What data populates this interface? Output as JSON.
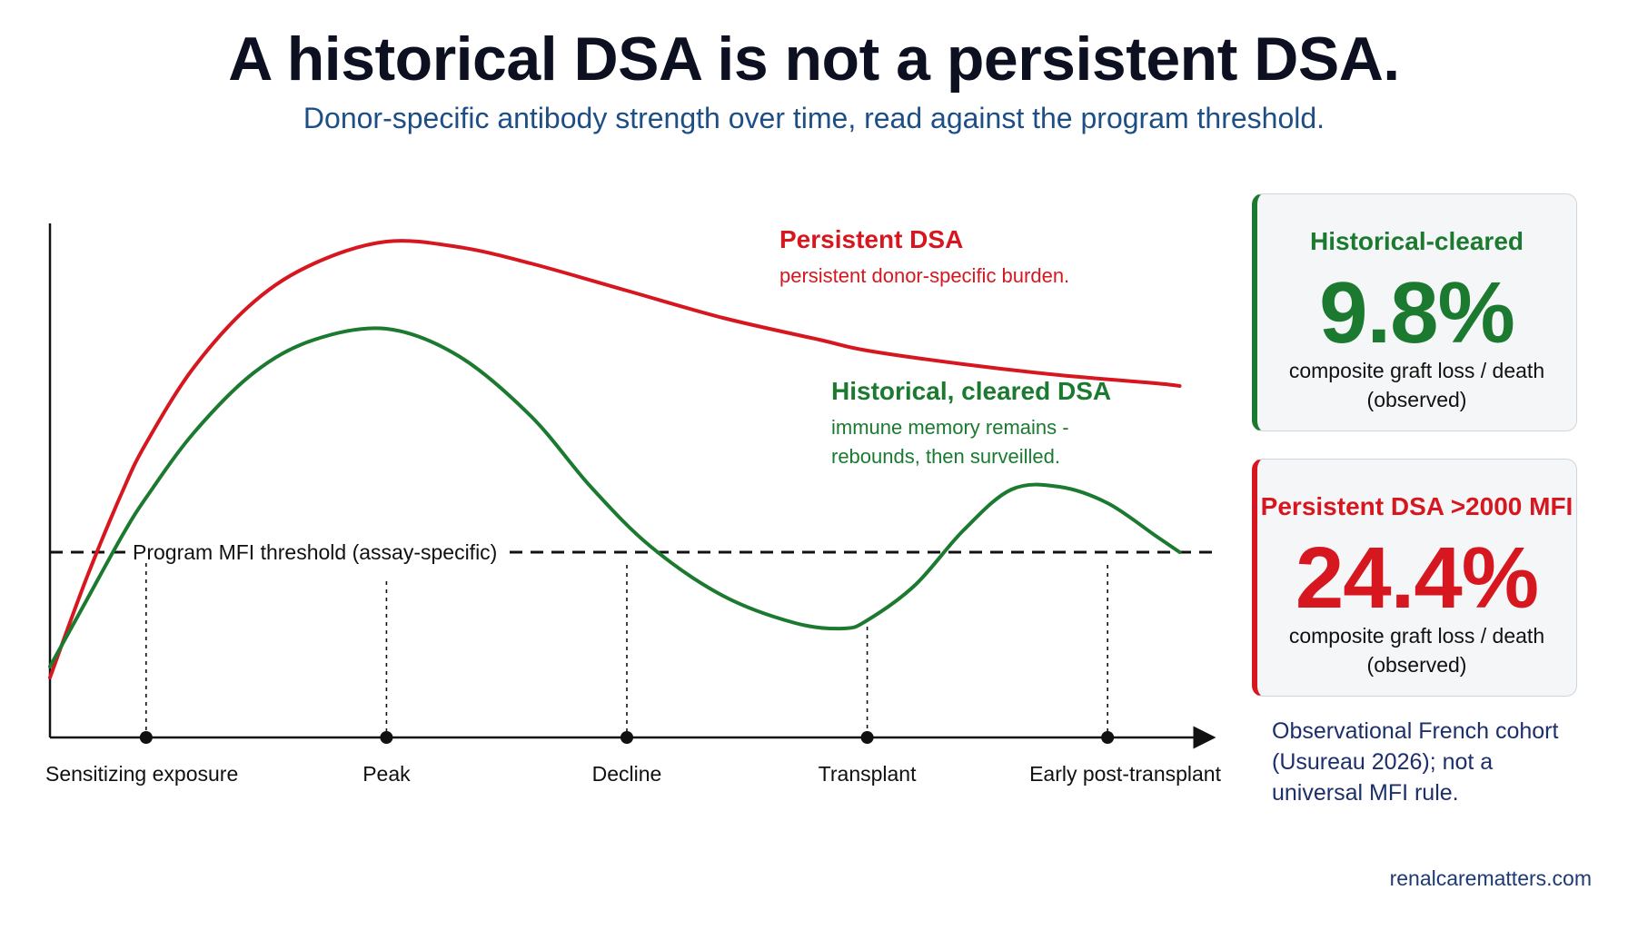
{
  "title": "A historical DSA is not a persistent DSA.",
  "subtitle": "Donor-specific antibody strength over time, read against the program threshold.",
  "colors": {
    "persistent": "#d7171f",
    "historical": "#1b7a2f",
    "threshold": "#111111"
  },
  "chart_data": {
    "type": "line",
    "x_categories": [
      "Sensitizing exposure",
      "Peak",
      "Decline",
      "Transplant",
      "Early post-transplant"
    ],
    "x_positions": [
      0,
      1,
      2,
      3,
      4
    ],
    "xlim": [
      -0.4,
      4.4
    ],
    "ylim": [
      0,
      10
    ],
    "y_units": "relative DSA strength (MFI)",
    "threshold": {
      "value": 3.4,
      "label": "Program MFI threshold (assay-specific)"
    },
    "series": [
      {
        "name": "Persistent DSA",
        "note": "persistent donor-specific burden.",
        "x": [
          -0.4,
          -0.25,
          -0.1,
          0.0,
          0.2,
          0.45,
          0.7,
          1.0,
          1.3,
          1.6,
          2.0,
          2.4,
          2.8,
          3.0,
          3.4,
          3.8,
          4.2,
          4.3
        ],
        "y": [
          1.1,
          2.9,
          4.5,
          5.4,
          6.8,
          8.0,
          8.7,
          9.1,
          9.0,
          8.7,
          8.2,
          7.7,
          7.3,
          7.1,
          6.85,
          6.65,
          6.5,
          6.45
        ]
      },
      {
        "name": "Historical, cleared DSA",
        "note": "immune memory remains - rebounds, then surveilled.",
        "x": [
          -0.4,
          -0.25,
          -0.1,
          0.0,
          0.2,
          0.45,
          0.7,
          1.0,
          1.3,
          1.6,
          1.85,
          2.1,
          2.4,
          2.7,
          2.9,
          3.0,
          3.2,
          3.4,
          3.6,
          3.8,
          4.0,
          4.2,
          4.3
        ],
        "y": [
          1.3,
          2.5,
          3.7,
          4.4,
          5.6,
          6.7,
          7.3,
          7.5,
          7.0,
          5.9,
          4.6,
          3.5,
          2.6,
          2.1,
          2.0,
          2.15,
          2.8,
          3.8,
          4.55,
          4.6,
          4.3,
          3.7,
          3.4
        ]
      }
    ],
    "xlabel": "",
    "ylabel": ""
  },
  "cards": [
    {
      "label": "Historical-cleared",
      "value": "9.8%",
      "desc_line1": "composite graft loss / death",
      "desc_line2": "(observed)"
    },
    {
      "label": "Persistent DSA >2000 MFI",
      "value": "24.4%",
      "desc_line1": "composite graft loss / death",
      "desc_line2": "(observed)"
    }
  ],
  "note_lines": [
    "Observational French cohort",
    "(Usureau 2026); not a",
    "universal MFI rule."
  ],
  "footer": "renalcarematters.com"
}
